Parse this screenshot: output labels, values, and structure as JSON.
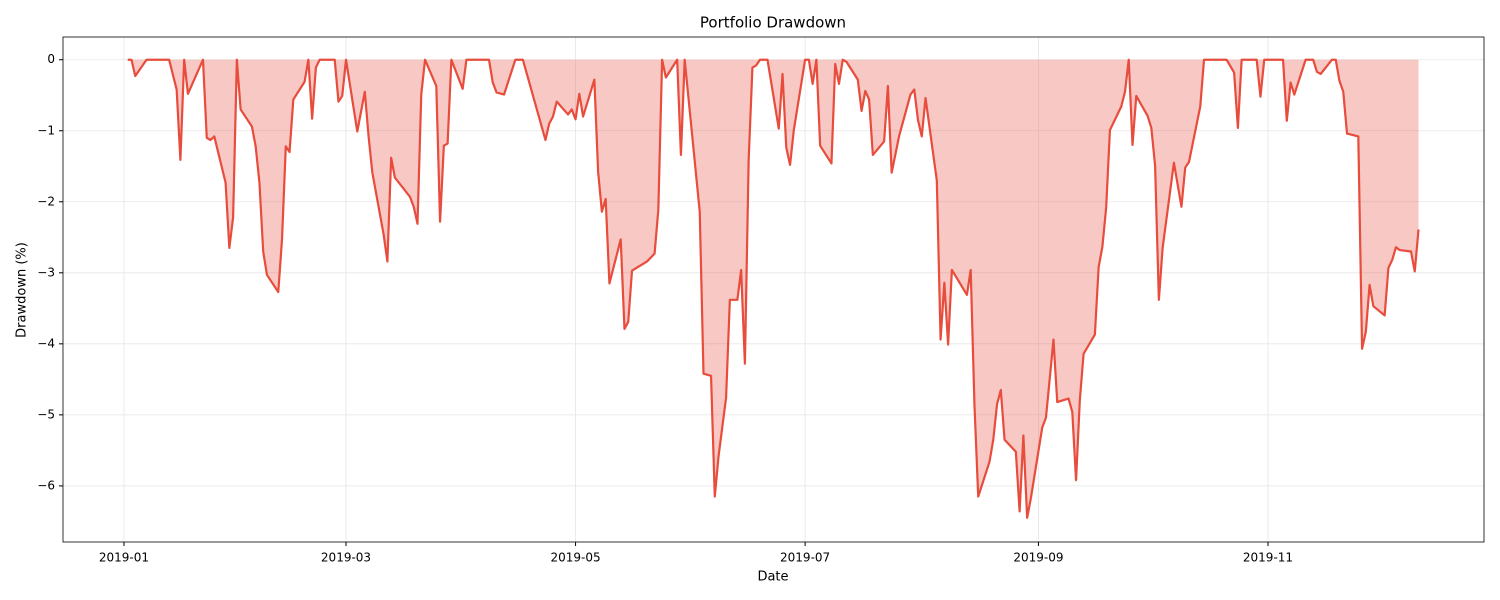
{
  "chart_data": {
    "type": "line",
    "title": "Portfolio Drawdown",
    "x_label": "Date",
    "y_label": "Drawdown (%)",
    "x": [
      1,
      2,
      3,
      6,
      12,
      14,
      15,
      16,
      17,
      21,
      22,
      23,
      24,
      27,
      28,
      29,
      30,
      31,
      34,
      35,
      36,
      37,
      38,
      41,
      42,
      43,
      44,
      45,
      48,
      49,
      50,
      51,
      52,
      56,
      57,
      58,
      59,
      62,
      64,
      65,
      66,
      69,
      70,
      71,
      72,
      76,
      77,
      78,
      79,
      80,
      83,
      84,
      85,
      86,
      87,
      90,
      91,
      92,
      97,
      98,
      99,
      101,
      104,
      106,
      112,
      113,
      114,
      115,
      118,
      119,
      120,
      121,
      122,
      125,
      126,
      127,
      128,
      129,
      132,
      133,
      134,
      135,
      139,
      141,
      142,
      143,
      144,
      147,
      148,
      149,
      153,
      154,
      156,
      157,
      158,
      160,
      161,
      163,
      164,
      165,
      166,
      167,
      168,
      169,
      171,
      174,
      175,
      176,
      177,
      178,
      181,
      182,
      183,
      184,
      185,
      188,
      189,
      190,
      191,
      192,
      195,
      196,
      197,
      198,
      199,
      202,
      203,
      204,
      206,
      209,
      210,
      211,
      212,
      213,
      216,
      217,
      218,
      219,
      220,
      224,
      225,
      226,
      227,
      230,
      231,
      232,
      233,
      234,
      237,
      238,
      239,
      240,
      241,
      244,
      245,
      247,
      248,
      251,
      252,
      253,
      254,
      255,
      258,
      259,
      260,
      261,
      262,
      265,
      266,
      267,
      268,
      269,
      272,
      273,
      274,
      275,
      276,
      279,
      280,
      281,
      282,
      283,
      286,
      287,
      293,
      295,
      296,
      297,
      301,
      302,
      303,
      308,
      309,
      310,
      311,
      314,
      316,
      317,
      318,
      321,
      322,
      323,
      324,
      325,
      328,
      329,
      330,
      331,
      332,
      335,
      336,
      337,
      338,
      339,
      342,
      343,
      344
    ],
    "series": [
      {
        "color": "#e74c3c",
        "values": [
          0,
          0,
          -0.23,
          0,
          0,
          -0.42,
          -1.41,
          0,
          -0.48,
          0,
          -1.1,
          -1.13,
          -1.08,
          -1.73,
          -2.65,
          -2.22,
          0,
          -0.7,
          -0.94,
          -1.22,
          -1.73,
          -2.7,
          -3.03,
          -3.27,
          -2.53,
          -1.22,
          -1.3,
          -0.56,
          -0.31,
          0,
          -0.83,
          -0.11,
          0,
          0,
          -0.59,
          -0.51,
          0,
          -1.01,
          -0.45,
          -1.08,
          -1.59,
          -2.46,
          -2.84,
          -1.38,
          -1.66,
          -1.93,
          -2.07,
          -2.31,
          -0.49,
          0,
          -0.37,
          -2.28,
          -1.21,
          -1.18,
          0,
          -0.41,
          0,
          0,
          0,
          -0.32,
          -0.46,
          -0.49,
          0,
          0,
          -1.13,
          -0.9,
          -0.8,
          -0.59,
          -0.77,
          -0.7,
          -0.84,
          -0.48,
          -0.8,
          -0.28,
          -1.58,
          -2.14,
          -1.96,
          -3.15,
          -2.53,
          -3.79,
          -3.69,
          -2.97,
          -2.84,
          -2.73,
          -2.11,
          0,
          -0.25,
          0,
          -1.34,
          0,
          -2.14,
          -4.42,
          -4.45,
          -6.15,
          -5.58,
          -4.76,
          -3.38,
          -3.38,
          -2.96,
          -4.28,
          -1.41,
          -0.11,
          -0.08,
          0,
          0,
          -0.97,
          -0.2,
          -1.24,
          -1.48,
          -0.99,
          0,
          0,
          -0.34,
          0,
          -1.21,
          -1.46,
          -0.06,
          -0.34,
          0,
          -0.03,
          -0.28,
          -0.72,
          -0.44,
          -0.56,
          -1.34,
          -1.15,
          -0.37,
          -1.59,
          -1.07,
          -0.49,
          -0.42,
          -0.85,
          -1.08,
          -0.54,
          -1.7,
          -3.94,
          -3.14,
          -4.01,
          -2.96,
          -3.31,
          -2.96,
          -4.86,
          -6.15,
          -5.66,
          -5.35,
          -4.85,
          -4.65,
          -5.35,
          -5.52,
          -6.36,
          -5.29,
          -6.45,
          -6.17,
          -5.18,
          -5.04,
          -3.94,
          -4.82,
          -4.77,
          -4.96,
          -5.92,
          -4.79,
          -4.14,
          -3.87,
          -2.92,
          -2.63,
          -2.08,
          -0.99,
          -0.66,
          -0.45,
          0,
          -1.2,
          -0.51,
          -0.79,
          -0.96,
          -1.49,
          -3.38,
          -2.65,
          -1.45,
          -1.76,
          -2.07,
          -1.52,
          -1.44,
          -0.66,
          0,
          0,
          -0.18,
          -0.96,
          0,
          0,
          -0.52,
          0,
          0,
          -0.86,
          -0.32,
          -0.49,
          0,
          0,
          -0.17,
          -0.2,
          0,
          0,
          -0.3,
          -0.45,
          -1.04,
          -1.08,
          -4.07,
          -3.83,
          -3.17,
          -3.47,
          -3.6,
          -2.93,
          -2.82,
          -2.64,
          -2.68,
          -2.7,
          -2.98,
          -2.39
        ]
      }
    ],
    "xlim": [
      -16.2,
      361.4
    ],
    "xticks": [
      {
        "value": 0,
        "label": "2019-01"
      },
      {
        "value": 59,
        "label": "2019-03"
      },
      {
        "value": 120,
        "label": "2019-05"
      },
      {
        "value": 181,
        "label": "2019-07"
      },
      {
        "value": 243,
        "label": "2019-09"
      },
      {
        "value": 304,
        "label": "2019-11"
      }
    ],
    "ylim": [
      -6.79,
      0.32
    ],
    "yticks": [
      {
        "value": -6,
        "label": "−6"
      },
      {
        "value": -5,
        "label": "−5"
      },
      {
        "value": -4,
        "label": "−4"
      },
      {
        "value": -3,
        "label": "−3"
      },
      {
        "value": -2,
        "label": "−2"
      },
      {
        "value": -1,
        "label": "−1"
      },
      0
    ],
    "grid": true,
    "fill": true
  }
}
